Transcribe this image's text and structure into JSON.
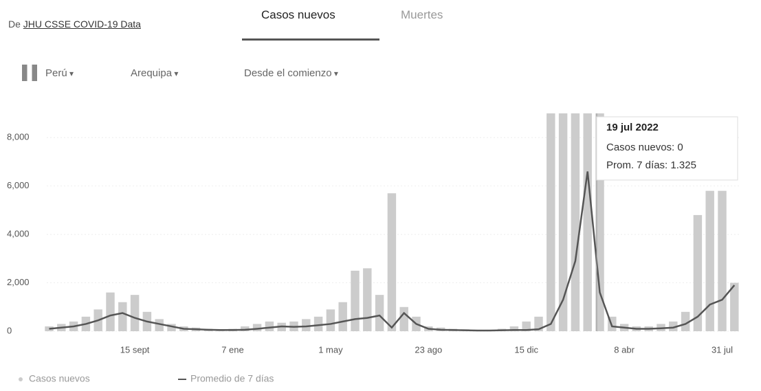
{
  "source": {
    "prefix": "De",
    "link": "JHU CSSE COVID-19 Data"
  },
  "tabs": [
    "Casos nuevos",
    "Muertes"
  ],
  "filters": [
    "Perú",
    "Arequipa",
    "Desde el comienzo"
  ],
  "chart_data": {
    "type": "bar-line",
    "categories": [
      null,
      null,
      null,
      null,
      null,
      null,
      null,
      "15 sept",
      null,
      null,
      null,
      null,
      null,
      null,
      null,
      "7 ene",
      null,
      null,
      null,
      null,
      null,
      null,
      null,
      "1 may",
      null,
      null,
      null,
      null,
      null,
      null,
      null,
      "23 ago",
      null,
      null,
      null,
      null,
      null,
      null,
      null,
      "15 dic",
      null,
      null,
      null,
      null,
      null,
      null,
      null,
      "8 abr",
      null,
      null,
      null,
      null,
      null,
      null,
      null,
      "31 jul",
      null
    ],
    "series": [
      {
        "name": "Casos nuevos",
        "color": "#cccccc",
        "values": [
          200,
          300,
          400,
          600,
          900,
          1600,
          1200,
          1500,
          800,
          500,
          300,
          200,
          150,
          100,
          80,
          100,
          200,
          300,
          400,
          350,
          400,
          500,
          600,
          900,
          1200,
          2500,
          2600,
          1500,
          5700,
          1000,
          600,
          200,
          150,
          100,
          80,
          60,
          60,
          100,
          200,
          400,
          600,
          9000,
          9000,
          9000,
          9000,
          9000,
          600,
          300,
          200,
          200,
          300,
          400,
          800,
          4800,
          5800,
          5800,
          2000
        ]
      },
      {
        "name": "Promedio de 7 días",
        "color": "#555555",
        "values": [
          100,
          150,
          200,
          300,
          450,
          650,
          750,
          550,
          400,
          300,
          200,
          100,
          80,
          60,
          50,
          50,
          60,
          100,
          150,
          200,
          180,
          200,
          250,
          300,
          400,
          500,
          550,
          650,
          150,
          750,
          300,
          100,
          60,
          50,
          40,
          30,
          30,
          40,
          50,
          50,
          80,
          300,
          1300,
          2900,
          6600,
          1600,
          200,
          150,
          100,
          100,
          120,
          150,
          300,
          600,
          1100,
          1300,
          1900
        ]
      }
    ],
    "ylim": [
      0,
      9000
    ],
    "yticks": [
      0,
      {
        "value": 2000,
        "label": "2,000"
      },
      {
        "value": 4000,
        "label": "4,000"
      },
      {
        "value": 6000,
        "label": "6,000"
      },
      {
        "value": 8000,
        "label": "8,000"
      }
    ],
    "tooltip": {
      "title": "19 jul 2022",
      "lines": [
        "Casos nuevos: 0",
        "Prom. 7 días: 1.325"
      ]
    }
  }
}
